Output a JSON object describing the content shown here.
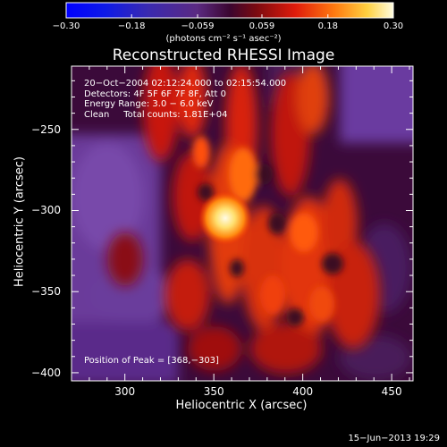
{
  "title": "Reconstructed RHESSI Image",
  "colorbar": {
    "units_label": "(photons cm⁻² s⁻¹ asec⁻²)",
    "tick_labels": [
      "−0.30",
      "−0.18",
      "−0.059",
      "0.059",
      "0.18",
      "0.30"
    ],
    "tick_values": [
      -0.3,
      -0.18,
      -0.059,
      0.059,
      0.18,
      0.3
    ],
    "range": [
      -0.3,
      0.3
    ]
  },
  "info": {
    "time_range": "20−Oct−2004 02:12:24.000 to 02:15:54.000",
    "detectors": "Detectors: 4F 5F 6F 7F 8F, Att 0",
    "energy": "Energy Range: 3.0 − 6.0 keV",
    "clean": "Clean     Total counts: 1.81E+04",
    "peak": "Position of Peak = [368,−303]"
  },
  "axes": {
    "xlabel": "Heliocentric X (arcsec)",
    "ylabel": "Heliocentric Y (arcsec)",
    "x_ticks": [
      300,
      350,
      400,
      450
    ],
    "x_tick_labels": [
      "300",
      "350",
      "400",
      "450"
    ],
    "y_ticks": [
      -250,
      -300,
      -350,
      -400
    ],
    "y_tick_labels": [
      "−250",
      "−300",
      "−350",
      "−400"
    ],
    "xlim": [
      270,
      462
    ],
    "ylim": [
      -405,
      -211
    ]
  },
  "footer": "15−Jun−2013 19:29"
}
